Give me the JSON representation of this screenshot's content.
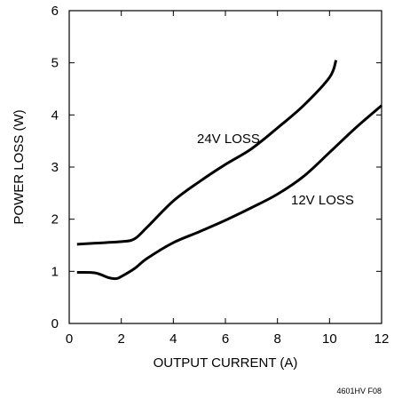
{
  "chart_data": {
    "type": "line",
    "xlabel": "OUTPUT CURRENT (A)",
    "ylabel": "POWER LOSS (W)",
    "xlim": [
      0,
      12
    ],
    "ylim": [
      0,
      6
    ],
    "x_ticks": [
      0,
      2,
      4,
      6,
      8,
      10,
      12
    ],
    "y_ticks": [
      0,
      1,
      2,
      3,
      4,
      5,
      6
    ],
    "grid": false,
    "series": [
      {
        "name": "24V LOSS",
        "x": [
          0.3,
          1.0,
          2.0,
          2.5,
          3.0,
          4.0,
          5.0,
          6.0,
          7.0,
          8.0,
          9.0,
          10.0,
          10.25
        ],
        "y": [
          1.52,
          1.54,
          1.57,
          1.62,
          1.85,
          2.35,
          2.72,
          3.05,
          3.35,
          3.75,
          4.18,
          4.72,
          5.05
        ]
      },
      {
        "name": "12V LOSS",
        "x": [
          0.3,
          1.0,
          1.5,
          1.8,
          2.0,
          2.5,
          3.0,
          4.0,
          5.0,
          6.0,
          7.0,
          8.0,
          9.0,
          10.0,
          11.0,
          12.0
        ],
        "y": [
          0.98,
          0.97,
          0.88,
          0.86,
          0.9,
          1.05,
          1.25,
          1.55,
          1.76,
          1.98,
          2.22,
          2.48,
          2.82,
          3.28,
          3.75,
          4.18
        ]
      }
    ],
    "figure_id": "4601HV F08"
  }
}
